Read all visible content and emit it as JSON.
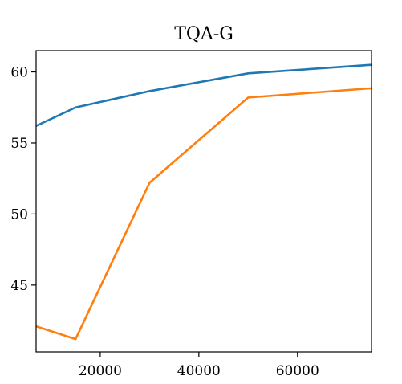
{
  "chart_data": {
    "type": "line",
    "title": "TQA-G",
    "xlabel": "",
    "ylabel": "",
    "xlim": [
      7000,
      75000
    ],
    "ylim": [
      40.3,
      61.5
    ],
    "xticks": [
      20000,
      40000,
      60000
    ],
    "xtick_labels": [
      "20000",
      "40000",
      "60000"
    ],
    "yticks": [
      45,
      50,
      55,
      60
    ],
    "ytick_labels": [
      "45",
      "50",
      "55",
      "60"
    ],
    "grid": false,
    "series": [
      {
        "color": "#1f77b4",
        "x": [
          7000,
          15000,
          30000,
          50000,
          75000
        ],
        "y": [
          56.2,
          57.5,
          58.65,
          59.9,
          60.5
        ]
      },
      {
        "color": "#ff7f0e",
        "x": [
          7000,
          15000,
          30000,
          50000,
          75000
        ],
        "y": [
          42.1,
          41.2,
          52.2,
          58.2,
          58.85
        ]
      }
    ]
  }
}
